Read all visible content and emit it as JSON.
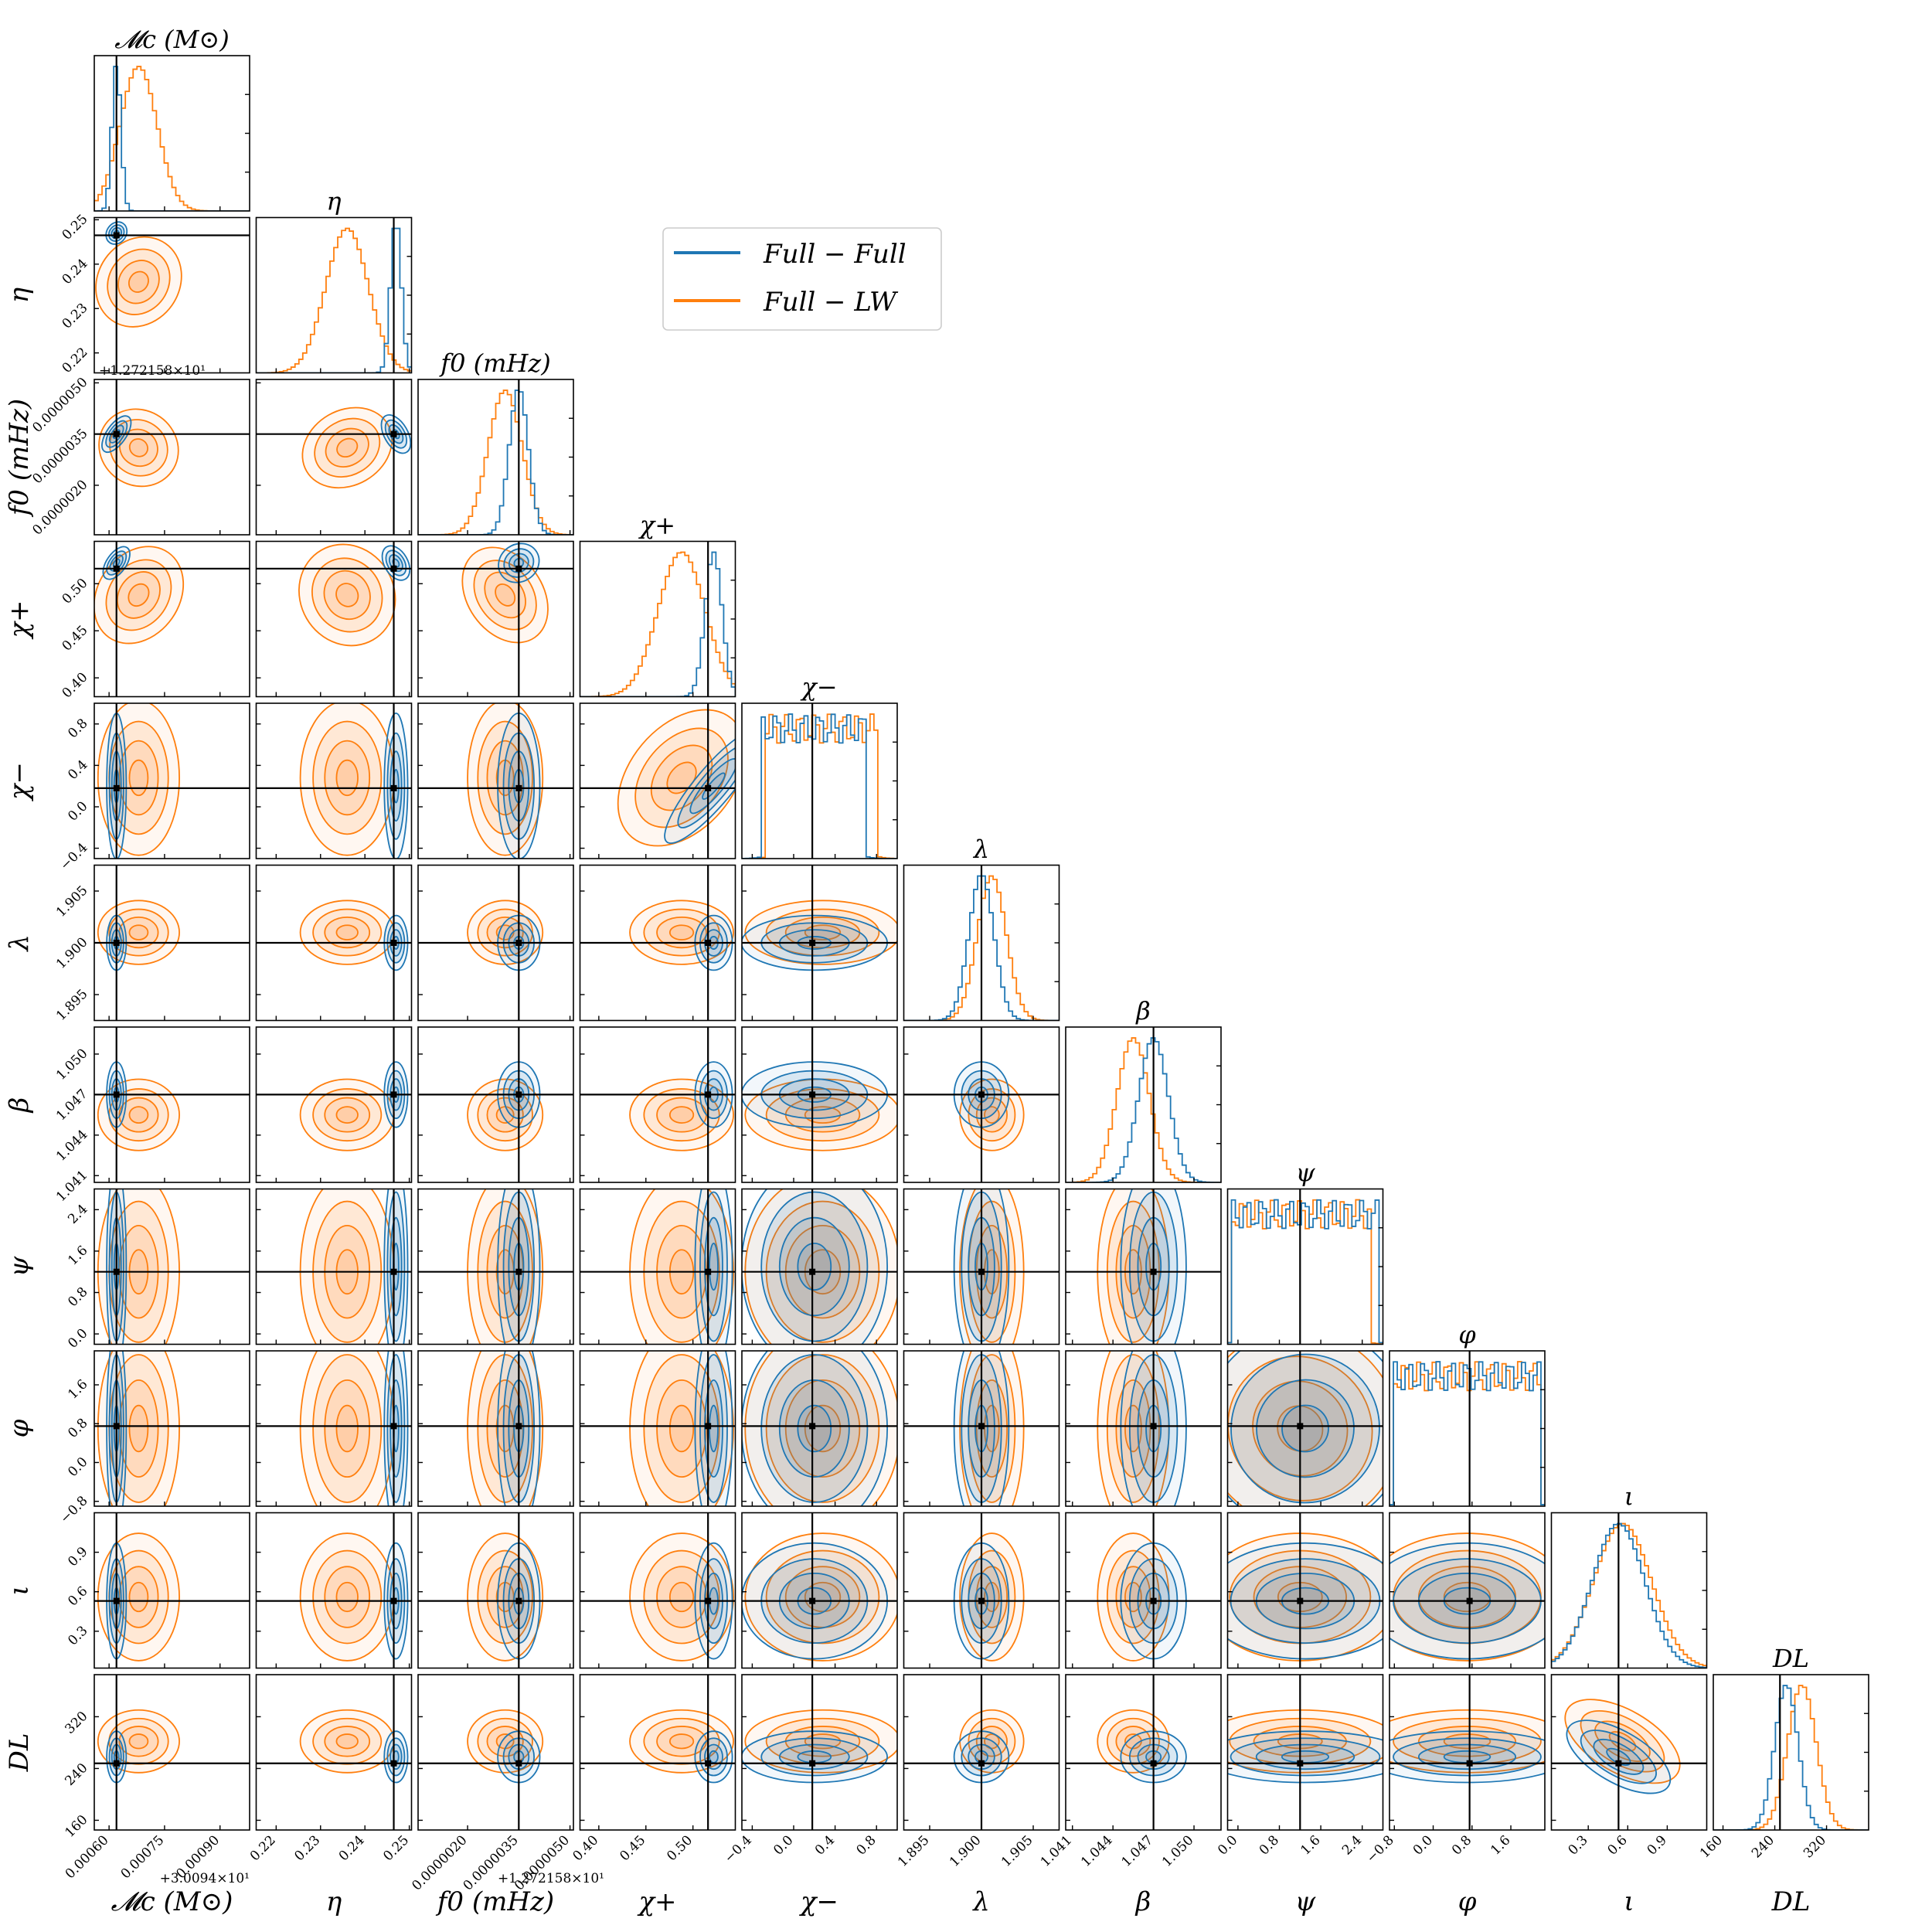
{
  "chart_data": {
    "type": "corner",
    "legend": {
      "placement": "top-center",
      "entries": [
        {
          "name": "Full − Full",
          "color": "#1f77b4"
        },
        {
          "name": "Full − LW",
          "color": "#ff7f0e"
        }
      ]
    },
    "colors": {
      "series_a": "#1f77b4",
      "series_b": "#ff7f0e",
      "truth": "#000000"
    },
    "series": [
      {
        "name": "Full − Full",
        "color": "#1f77b4"
      },
      {
        "name": "Full − LW",
        "color": "#ff7f0e"
      }
    ],
    "parameters": [
      {
        "key": "Mc",
        "label": "𝓜c (M⊙)",
        "title": "𝓜c (M⊙)",
        "ticks": [
          "0.00060",
          "0.00075",
          "0.00090"
        ],
        "tickvals": [
          0.0006,
          0.00075,
          0.0009
        ],
        "range": [
          0.00056,
          0.00098
        ],
        "offset": "+3.0094×10¹",
        "truth": 0.00062,
        "a": {
          "mu": 0.00062,
          "sd": 1.2e-05
        },
        "b": {
          "mu": 0.00068,
          "sd": 5e-05
        }
      },
      {
        "key": "eta",
        "label": "η",
        "title": "η",
        "ticks": [
          "0.22",
          "0.23",
          "0.24",
          "0.25"
        ],
        "tickvals": [
          0.22,
          0.23,
          0.24,
          0.25
        ],
        "range": [
          0.2155,
          0.2505
        ],
        "offset": "",
        "truth": 0.2465,
        "a": {
          "mu": 0.247,
          "sd": 0.0012
        },
        "b": {
          "mu": 0.236,
          "sd": 0.0048
        }
      },
      {
        "key": "f0",
        "label": "f0 (mHz)",
        "title": "f0 (mHz)",
        "ticks": [
          "0.0000020",
          "0.0000035",
          "0.0000050"
        ],
        "tickvals": [
          2e-06,
          3.5e-06,
          5e-06
        ],
        "range": [
          5.5e-07,
          5.1e-06
        ],
        "offset": "+1.272158×10¹",
        "truth": 3.5e-06,
        "a": {
          "mu": 3.5e-06,
          "sd": 2.8e-07
        },
        "b": {
          "mu": 3.1e-06,
          "sd": 5e-07
        }
      },
      {
        "key": "chip",
        "label": "χ+",
        "title": "χ+",
        "ticks": [
          "0.40",
          "0.45",
          "0.50"
        ],
        "tickvals": [
          0.4,
          0.45,
          0.5
        ],
        "range": [
          0.38,
          0.545
        ],
        "offset": "",
        "truth": 0.516,
        "a": {
          "mu": 0.522,
          "sd": 0.009
        },
        "b": {
          "mu": 0.488,
          "sd": 0.025
        }
      },
      {
        "key": "chim",
        "label": "χ−",
        "title": "χ−",
        "ticks": [
          "−0.4",
          "0.0",
          "0.4",
          "0.8"
        ],
        "tickvals": [
          -0.4,
          0,
          0.4,
          0.8
        ],
        "range": [
          -0.5,
          1.0
        ],
        "offset": "",
        "truth": 0.18,
        "a": {
          "mu": 0.2,
          "sd": 0.32
        },
        "b": {
          "mu": 0.28,
          "sd": 0.34
        }
      },
      {
        "key": "lam",
        "label": "λ",
        "title": "λ",
        "ticks": [
          "1.895",
          "1.900",
          "1.905"
        ],
        "tickvals": [
          1.895,
          1.9,
          1.905
        ],
        "range": [
          1.8925,
          1.9075
        ],
        "offset": "",
        "truth": 1.9,
        "a": {
          "mu": 1.9,
          "sd": 0.0012
        },
        "b": {
          "mu": 1.901,
          "sd": 0.0014
        }
      },
      {
        "key": "beta",
        "label": "β",
        "title": "β",
        "ticks": [
          "1.041",
          "1.044",
          "1.047",
          "1.050"
        ],
        "tickvals": [
          1.041,
          1.044,
          1.047,
          1.05
        ],
        "range": [
          1.0405,
          1.052
        ],
        "offset": "",
        "truth": 1.047,
        "a": {
          "mu": 1.047,
          "sd": 0.0011
        },
        "b": {
          "mu": 1.0455,
          "sd": 0.0012
        }
      },
      {
        "key": "psi",
        "label": "ψ",
        "title": "ψ",
        "ticks": [
          "0.0",
          "0.8",
          "1.6",
          "2.4"
        ],
        "tickvals": [
          0,
          0.8,
          1.6,
          2.4
        ],
        "range": [
          -0.2,
          2.8
        ],
        "offset": "",
        "truth": 1.2,
        "a": {
          "mu": 1.3,
          "sd": 0.9
        },
        "b": {
          "mu": 1.2,
          "sd": 0.85
        }
      },
      {
        "key": "phi",
        "label": "φ",
        "title": "φ",
        "ticks": [
          "−0.8",
          "0.0",
          "0.8",
          "1.6"
        ],
        "tickvals": [
          -0.8,
          0,
          0.8,
          1.6
        ],
        "range": [
          -0.9,
          2.3
        ],
        "offset": "",
        "truth": 0.75,
        "a": {
          "mu": 0.7,
          "sd": 0.95
        },
        "b": {
          "mu": 0.7,
          "sd": 0.95
        }
      },
      {
        "key": "iota",
        "label": "ι",
        "title": "ι",
        "ticks": [
          "0.3",
          "0.6",
          "0.9"
        ],
        "tickvals": [
          0.3,
          0.6,
          0.9
        ],
        "range": [
          0.02,
          1.2
        ],
        "offset": "",
        "truth": 0.53,
        "a": {
          "mu": 0.53,
          "sd": 0.2
        },
        "b": {
          "mu": 0.56,
          "sd": 0.22
        }
      },
      {
        "key": "DL",
        "label": "DL",
        "title": "DL",
        "ticks": [
          "160",
          "240",
          "320"
        ],
        "tickvals": [
          160,
          240,
          320
        ],
        "range": [
          145,
          385
        ],
        "offset": "",
        "truth": 248,
        "a": {
          "mu": 258,
          "sd": 18
        },
        "b": {
          "mu": 282,
          "sd": 22
        }
      }
    ]
  }
}
